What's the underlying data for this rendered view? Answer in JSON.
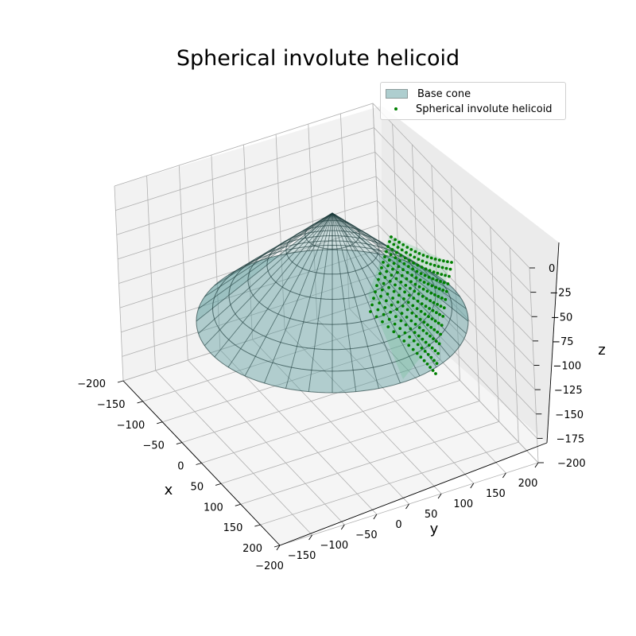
{
  "chart_data": {
    "type": "surface3d+scatter3d",
    "title": "Spherical involute helicoid",
    "xlabel": "x",
    "ylabel": "y",
    "zlabel": "z",
    "xlim": [
      -200,
      200
    ],
    "ylim": [
      -200,
      200
    ],
    "zlim": [
      -200,
      0
    ],
    "xticks": [
      -200,
      -150,
      -100,
      -50,
      0,
      50,
      100,
      150,
      200
    ],
    "yticks": [
      -200,
      -150,
      -100,
      -50,
      0,
      50,
      100,
      150,
      200
    ],
    "zticks": [
      0,
      -25,
      -50,
      -75,
      -100,
      -125,
      -150,
      -175,
      -200
    ],
    "xtick_labels": [
      "−200",
      "−150",
      "−100",
      "−50",
      "0",
      "50",
      "100",
      "150",
      "200"
    ],
    "ytick_labels": [
      "−200",
      "−150",
      "−100",
      "−50",
      "0",
      "50",
      "100",
      "150",
      "200"
    ],
    "ztick_labels": [
      "0",
      "−25",
      "−50",
      "−75",
      "−100",
      "−125",
      "−150",
      "−175",
      "−200"
    ],
    "grid": true,
    "legend_position": "top-right",
    "series": [
      {
        "name": "Base cone",
        "kind": "surface",
        "apex": [
          0,
          0,
          0
        ],
        "base_radius": 200,
        "height": 100,
        "spherical_cap": true,
        "color": "#5f9ea0",
        "edge_color": "#1b3a3a"
      },
      {
        "name": "Spherical involute helicoid",
        "kind": "scatter",
        "color": "#008000"
      }
    ],
    "legend": [
      {
        "label": "Base cone",
        "color": "#5f9ea0"
      },
      {
        "label": "Spherical involute helicoid",
        "color": "#008000"
      }
    ]
  }
}
